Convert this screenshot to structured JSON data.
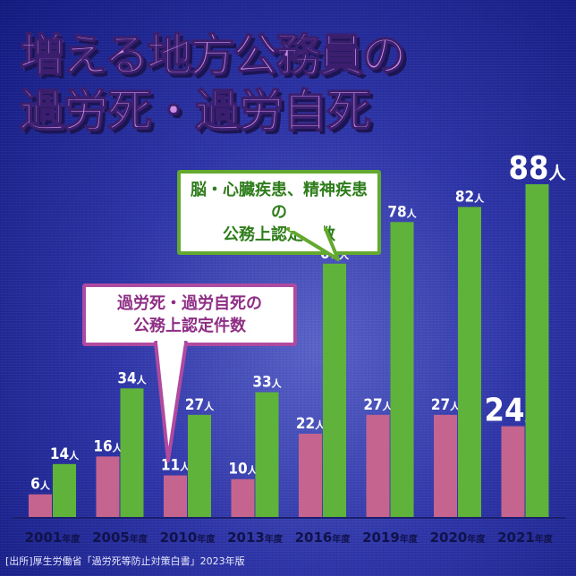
{
  "title": {
    "line1": "増える地方公務員の",
    "line2": "過労死・過労自死"
  },
  "callouts": {
    "green_line1": "脳・心臓疾患、精神疾患の",
    "green_line2": "公務上認定件数",
    "pink_line1": "過労死・過労自死の",
    "pink_line2": "公務上認定件数"
  },
  "source": "[出所]厚生労働省「過労死等防止対策白書」2023年版",
  "colors": {
    "green_bar": "#5fb33a",
    "pink_bar": "#c5648f",
    "axis_label": "#10124a",
    "value_label": "#ffffff"
  },
  "chart_data": {
    "type": "bar",
    "categories": [
      "2001",
      "2005",
      "2010",
      "2013",
      "2016",
      "2019",
      "2020",
      "2021"
    ],
    "category_suffix": "年度",
    "value_suffix": "人",
    "series": [
      {
        "name": "過労死・過労自死の公務上認定件数",
        "values": [
          6,
          16,
          11,
          10,
          22,
          27,
          27,
          24
        ]
      },
      {
        "name": "脳・心臓疾患、精神疾患の公務上認定件数",
        "values": [
          14,
          34,
          27,
          33,
          67,
          78,
          82,
          88
        ]
      }
    ],
    "ylim": [
      0,
      88
    ],
    "grid": false
  }
}
